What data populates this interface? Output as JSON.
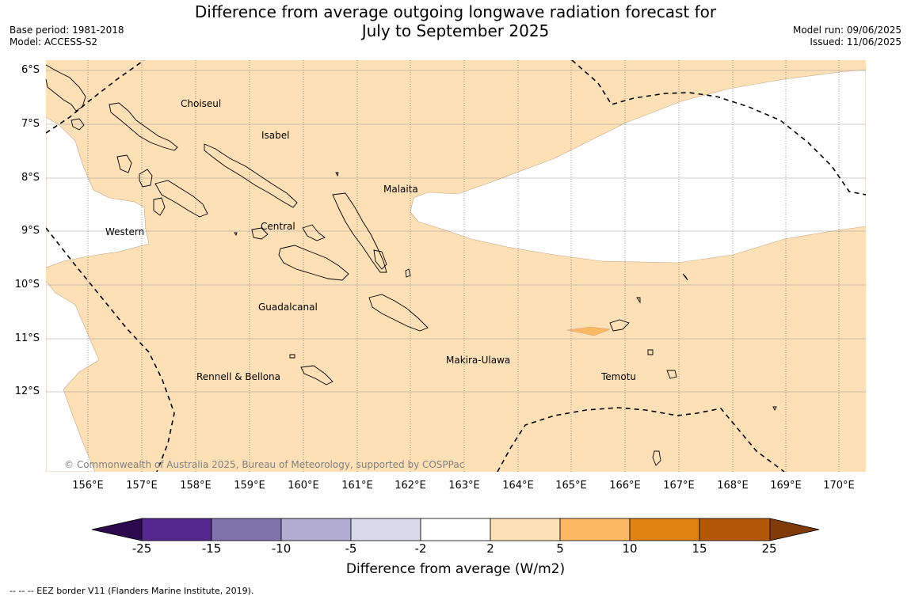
{
  "title_line1": "Difference from average outgoing longwave radiation forecast for",
  "title_line2": "July to September 2025",
  "base_period": "Base period: 1981-2018",
  "model": "Model: ACCESS-S2",
  "model_run": "Model run: 09/06/2025",
  "issued": "Issued: 11/06/2025",
  "longitude_labels": [
    "156°E",
    "157°E",
    "158°E",
    "159°E",
    "160°E",
    "161°E",
    "162°E",
    "163°E",
    "164°E",
    "165°E",
    "166°E",
    "167°E",
    "168°E",
    "169°E",
    "170°E"
  ],
  "latitude_labels": [
    "6°S",
    "7°S",
    "8°S",
    "9°S",
    "10°S",
    "11°S",
    "12°S"
  ],
  "regions": {
    "choiseul": "Choiseul",
    "isabel": "Isabel",
    "malaita": "Malaita",
    "western": "Western",
    "central": "Central",
    "guadalcanal": "Guadalcanal",
    "makira": "Makira-Ulawa",
    "temotu": "Temotu",
    "rennell": "Rennell & Bellona"
  },
  "copyright": "© Commonwealth of Australia 2025, Bureau of Meteorology, supported by COSPPac",
  "colorbar": {
    "ticks": [
      "-25",
      "-15",
      "-10",
      "-5",
      "-2",
      "2",
      "5",
      "10",
      "15",
      "25"
    ],
    "colors": [
      "#2d0a4d",
      "#54278f",
      "#8073ac",
      "#b2abd2",
      "#d8daeb",
      "#ffffff",
      "#fde0b6",
      "#fdb863",
      "#e08214",
      "#b35806",
      "#7f3b08"
    ],
    "label": "Difference from average (W/m2)"
  },
  "map_colors": {
    "shade_2_5": "#fde0b6",
    "shade_5_10": "#fdb863"
  },
  "footnote": "--  --  -- EEZ border V11 (Flanders Marine Institute, 2019)."
}
